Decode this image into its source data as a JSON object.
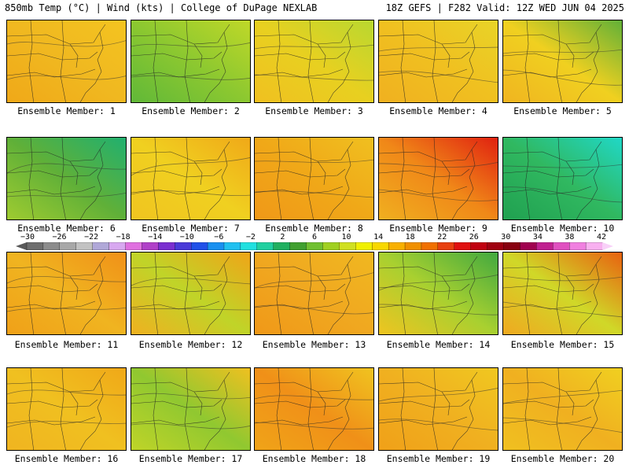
{
  "header": {
    "left": "850mb Temp (°C) | Wind (kts) | College of DuPage NEXLAB",
    "right": "18Z GEFS | F282 Valid: 12Z WED JUN 04 2025"
  },
  "colorbar": {
    "tick_labels": [
      "−30",
      "−26",
      "−22",
      "−18",
      "−14",
      "−10",
      "−6",
      "−2",
      "2",
      "6",
      "10",
      "14",
      "18",
      "22",
      "26",
      "30",
      "34",
      "38",
      "42"
    ],
    "swatches": [
      "#6e6e6e",
      "#8c8c8c",
      "#a8a8a8",
      "#c2c2c2",
      "#b0a8d8",
      "#d8a8f0",
      "#e070e0",
      "#b040c8",
      "#7a2fd0",
      "#4a3ad8",
      "#2050e8",
      "#1890f0",
      "#20c0f0",
      "#20e0e0",
      "#20d0a0",
      "#20b060",
      "#40a030",
      "#70c030",
      "#a0d020",
      "#d0e020",
      "#f0f000",
      "#f8d800",
      "#f8b000",
      "#f09000",
      "#f07000",
      "#e84010",
      "#e01010",
      "#c00010",
      "#a00010",
      "#880010",
      "#a00050",
      "#c02090",
      "#e050c0",
      "#f080e0",
      "#f8b0f0"
    ]
  },
  "members": [
    {
      "label": "Ensemble Member: 1",
      "palette": [
        "#f0a818",
        "#f0b820",
        "#f4c420"
      ]
    },
    {
      "label": "Ensemble Member: 2",
      "palette": [
        "#60b838",
        "#8cc830",
        "#c0d828"
      ]
    },
    {
      "label": "Ensemble Member: 3",
      "palette": [
        "#f0c020",
        "#e8d020",
        "#b8d830"
      ]
    },
    {
      "label": "Ensemble Member: 4",
      "palette": [
        "#f0b020",
        "#f0c020",
        "#e8d428"
      ]
    },
    {
      "label": "Ensemble Member: 5",
      "palette": [
        "#f0b420",
        "#f0d020",
        "#60b038"
      ]
    },
    {
      "label": "Ensemble Member: 6",
      "palette": [
        "#a0cc30",
        "#60b038",
        "#20b070"
      ]
    },
    {
      "label": "Ensemble Member: 7",
      "palette": [
        "#f0c420",
        "#f0d020",
        "#f0a818"
      ]
    },
    {
      "label": "Ensemble Member: 8",
      "palette": [
        "#f09818",
        "#f0a818",
        "#f0c020"
      ]
    },
    {
      "label": "Ensemble Member: 9",
      "palette": [
        "#f0b020",
        "#f08818",
        "#e02010"
      ]
    },
    {
      "label": "Ensemble Member: 10",
      "palette": [
        "#20a050",
        "#30b860",
        "#20d8c8"
      ]
    },
    {
      "label": "Ensemble Member: 11",
      "palette": [
        "#f0a018",
        "#f0b420",
        "#f09018"
      ]
    },
    {
      "label": "Ensemble Member: 12",
      "palette": [
        "#f0b020",
        "#c0d428",
        "#f0a418"
      ]
    },
    {
      "label": "Ensemble Member: 13",
      "palette": [
        "#f09818",
        "#f0a820",
        "#f0b820"
      ]
    },
    {
      "label": "Ensemble Member: 14",
      "palette": [
        "#f0c420",
        "#a8d030",
        "#40a840"
      ]
    },
    {
      "label": "Ensemble Member: 15",
      "palette": [
        "#f0a820",
        "#d0d828",
        "#e86010"
      ]
    },
    {
      "label": "Ensemble Member: 16",
      "palette": [
        "#f0b420",
        "#f0c020",
        "#f0a818"
      ]
    },
    {
      "label": "Ensemble Member: 17",
      "palette": [
        "#c0d428",
        "#90c830",
        "#f0c020"
      ]
    },
    {
      "label": "Ensemble Member: 18",
      "palette": [
        "#f0a418",
        "#f09018",
        "#f0c420"
      ]
    },
    {
      "label": "Ensemble Member: 19",
      "palette": [
        "#f0a018",
        "#f0b020",
        "#f0c820"
      ]
    },
    {
      "label": "Ensemble Member: 20",
      "palette": [
        "#f0c020",
        "#f0b020",
        "#f0d020"
      ]
    }
  ]
}
